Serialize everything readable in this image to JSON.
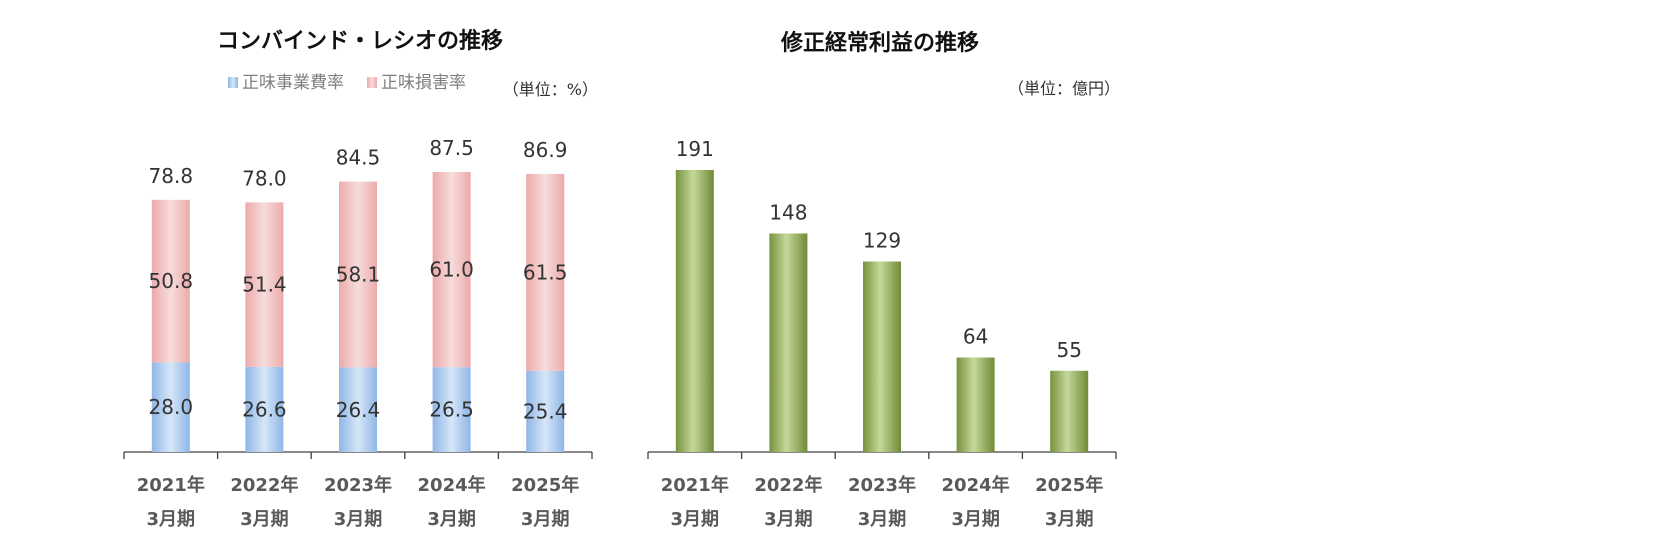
{
  "chart_data": [
    {
      "type": "bar",
      "stacked": true,
      "title": "コンバインド・レシオの推移",
      "unit_label": "（単位：%）",
      "categories": [
        {
          "year": "2021年",
          "period": "3月期"
        },
        {
          "year": "2022年",
          "period": "3月期"
        },
        {
          "year": "2023年",
          "period": "3月期"
        },
        {
          "year": "2024年",
          "period": "3月期"
        },
        {
          "year": "2025年",
          "period": "3月期"
        }
      ],
      "series": [
        {
          "name": "正味事業費率",
          "color": "#9dc3e6",
          "values": [
            28.0,
            26.6,
            26.4,
            26.5,
            25.4
          ],
          "labels": [
            "28.0",
            "26.6",
            "26.4",
            "26.5",
            "25.4"
          ]
        },
        {
          "name": "正味損害率",
          "color": "#f2b9b9",
          "values": [
            50.8,
            51.4,
            58.1,
            61.0,
            61.5
          ],
          "labels": [
            "50.8",
            "51.4",
            "58.1",
            "61.0",
            "61.5"
          ]
        }
      ],
      "totals": [
        78.8,
        78.0,
        84.5,
        87.5,
        86.9
      ],
      "total_labels": [
        "78.8",
        "78.0",
        "84.5",
        "87.5",
        "86.9"
      ],
      "ylim": [
        0,
        87.5
      ],
      "legend_position": "top",
      "grid": false
    },
    {
      "type": "bar",
      "title": "修正経常利益の推移",
      "unit_label": "（単位：億円）",
      "categories": [
        {
          "year": "2021年",
          "period": "3月期"
        },
        {
          "year": "2022年",
          "period": "3月期"
        },
        {
          "year": "2023年",
          "period": "3月期"
        },
        {
          "year": "2024年",
          "period": "3月期"
        },
        {
          "year": "2025年",
          "period": "3月期"
        }
      ],
      "series": [
        {
          "color": "#9bbb59",
          "values": [
            191,
            148,
            129,
            64,
            55
          ],
          "labels": [
            "191",
            "148",
            "129",
            "64",
            "55"
          ]
        }
      ],
      "ylim": [
        0,
        191
      ],
      "grid": false
    }
  ]
}
